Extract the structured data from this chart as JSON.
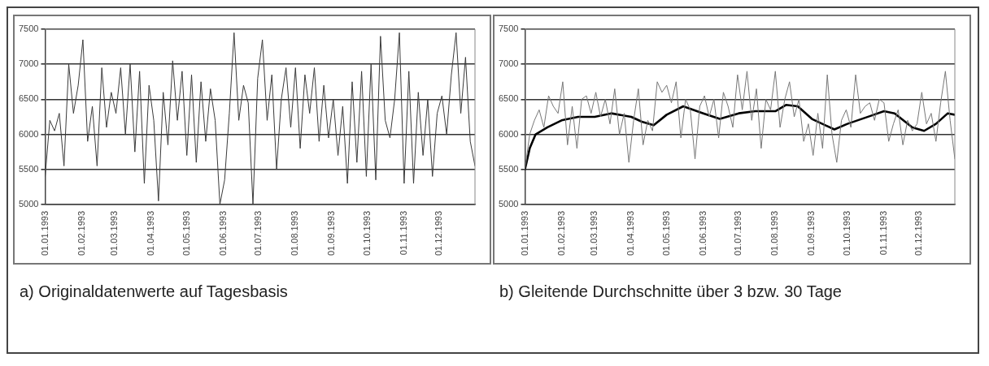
{
  "chart_data": [
    {
      "type": "line",
      "title": "a) Originaldatenwerte auf Tagesbasis",
      "grid": "y",
      "legend": false,
      "marker": "none",
      "x": [
        "1993-01-01",
        "1993-01-05",
        "1993-01-09",
        "1993-01-13",
        "1993-01-17",
        "1993-01-21",
        "1993-01-25",
        "1993-01-29",
        "1993-02-02",
        "1993-02-06",
        "1993-02-10",
        "1993-02-14",
        "1993-02-18",
        "1993-02-22",
        "1993-02-26",
        "1993-03-02",
        "1993-03-06",
        "1993-03-10",
        "1993-03-14",
        "1993-03-18",
        "1993-03-22",
        "1993-03-26",
        "1993-03-30",
        "1993-04-03",
        "1993-04-07",
        "1993-04-11",
        "1993-04-15",
        "1993-04-19",
        "1993-04-23",
        "1993-04-27",
        "1993-05-01",
        "1993-05-05",
        "1993-05-09",
        "1993-05-13",
        "1993-05-17",
        "1993-05-21",
        "1993-05-25",
        "1993-05-29",
        "1993-06-02",
        "1993-06-06",
        "1993-06-10",
        "1993-06-14",
        "1993-06-18",
        "1993-06-22",
        "1993-06-26",
        "1993-06-30",
        "1993-07-04",
        "1993-07-08",
        "1993-07-12",
        "1993-07-16",
        "1993-07-20",
        "1993-07-24",
        "1993-07-28",
        "1993-08-01",
        "1993-08-05",
        "1993-08-09",
        "1993-08-13",
        "1993-08-17",
        "1993-08-21",
        "1993-08-25",
        "1993-08-29",
        "1993-09-02",
        "1993-09-06",
        "1993-09-10",
        "1993-09-14",
        "1993-09-18",
        "1993-09-22",
        "1993-09-26",
        "1993-09-30",
        "1993-10-04",
        "1993-10-08",
        "1993-10-12",
        "1993-10-16",
        "1993-10-20",
        "1993-10-24",
        "1993-10-28",
        "1993-11-01",
        "1993-11-05",
        "1993-11-09",
        "1993-11-13",
        "1993-11-17",
        "1993-11-21",
        "1993-11-25",
        "1993-11-29",
        "1993-12-03",
        "1993-12-07",
        "1993-12-11",
        "1993-12-15",
        "1993-12-19",
        "1993-12-23",
        "1993-12-27",
        "1993-12-31"
      ],
      "series": [
        {
          "color": "#3a3a3a",
          "values": [
            5400,
            6200,
            6050,
            6300,
            5550,
            7000,
            6300,
            6700,
            7350,
            5900,
            6400,
            5550,
            6950,
            6100,
            6600,
            6300,
            6950,
            6000,
            7000,
            5750,
            6900,
            5300,
            6700,
            6200,
            5050,
            6600,
            5850,
            7050,
            6200,
            6900,
            5700,
            6850,
            5600,
            6750,
            5900,
            6650,
            6200,
            5000,
            5350,
            6300,
            7450,
            6200,
            6700,
            6450,
            5000,
            6800,
            7350,
            6200,
            6850,
            5500,
            6500,
            6950,
            6100,
            6950,
            5800,
            6850,
            6300,
            6950,
            5900,
            6700,
            5950,
            6500,
            5700,
            6400,
            5300,
            6750,
            5600,
            6900,
            5400,
            7000,
            5350,
            7400,
            6200,
            5950,
            6500,
            7450,
            5300,
            6900,
            5300,
            6600,
            5700,
            6500,
            5400,
            6300,
            6550,
            6000,
            6850,
            7450,
            6300,
            7100,
            5900,
            5550
          ]
        }
      ],
      "xlim": [
        "1993-01-01",
        "1993-12-31"
      ],
      "xticks": [
        {
          "value": "1993-01-01",
          "label": "01.01.1993"
        },
        {
          "value": "1993-02-01",
          "label": "01.02.1993"
        },
        {
          "value": "1993-03-01",
          "label": "01.03.1993"
        },
        {
          "value": "1993-04-01",
          "label": "01.04.1993"
        },
        {
          "value": "1993-05-01",
          "label": "01.05.1993"
        },
        {
          "value": "1993-06-01",
          "label": "01.06.1993"
        },
        {
          "value": "1993-07-01",
          "label": "01.07.1993"
        },
        {
          "value": "1993-08-01",
          "label": "01.08.1993"
        },
        {
          "value": "1993-09-01",
          "label": "01.09.1993"
        },
        {
          "value": "1993-10-01",
          "label": "01.10.1993"
        },
        {
          "value": "1993-11-01",
          "label": "01.11.1993"
        },
        {
          "value": "1993-12-01",
          "label": "01.12.1993"
        }
      ],
      "ylim": [
        5000,
        7500
      ],
      "yticks": [
        5000,
        5500,
        6000,
        6500,
        7000,
        7500
      ]
    },
    {
      "type": "line",
      "title": "b) Gleitende Durchschnitte über 3 bzw. 30 Tage",
      "grid": "y",
      "legend": false,
      "marker": "none",
      "x": [
        "1993-01-01",
        "1993-01-05",
        "1993-01-09",
        "1993-01-13",
        "1993-01-17",
        "1993-01-21",
        "1993-01-25",
        "1993-01-29",
        "1993-02-02",
        "1993-02-06",
        "1993-02-10",
        "1993-02-14",
        "1993-02-18",
        "1993-02-22",
        "1993-02-26",
        "1993-03-02",
        "1993-03-06",
        "1993-03-10",
        "1993-03-14",
        "1993-03-18",
        "1993-03-22",
        "1993-03-26",
        "1993-03-30",
        "1993-04-03",
        "1993-04-07",
        "1993-04-11",
        "1993-04-15",
        "1993-04-19",
        "1993-04-23",
        "1993-04-27",
        "1993-05-01",
        "1993-05-05",
        "1993-05-09",
        "1993-05-13",
        "1993-05-17",
        "1993-05-21",
        "1993-05-25",
        "1993-05-29",
        "1993-06-02",
        "1993-06-06",
        "1993-06-10",
        "1993-06-14",
        "1993-06-18",
        "1993-06-22",
        "1993-06-26",
        "1993-06-30",
        "1993-07-04",
        "1993-07-08",
        "1993-07-12",
        "1993-07-16",
        "1993-07-20",
        "1993-07-24",
        "1993-07-28",
        "1993-08-01",
        "1993-08-05",
        "1993-08-09",
        "1993-08-13",
        "1993-08-17",
        "1993-08-21",
        "1993-08-25",
        "1993-08-29",
        "1993-09-02",
        "1993-09-06",
        "1993-09-10",
        "1993-09-14",
        "1993-09-18",
        "1993-09-22",
        "1993-09-26",
        "1993-09-30",
        "1993-10-04",
        "1993-10-08",
        "1993-10-12",
        "1993-10-16",
        "1993-10-20",
        "1993-10-24",
        "1993-10-28",
        "1993-11-01",
        "1993-11-05",
        "1993-11-09",
        "1993-11-13",
        "1993-11-17",
        "1993-11-21",
        "1993-11-25",
        "1993-11-29",
        "1993-12-03",
        "1993-12-07",
        "1993-12-11",
        "1993-12-15",
        "1993-12-19",
        "1993-12-23",
        "1993-12-27",
        "1993-12-31"
      ],
      "series": [
        {
          "color": "#777777",
          "values": [
            5500,
            6000,
            6200,
            6350,
            6100,
            6550,
            6400,
            6300,
            6750,
            5850,
            6400,
            5800,
            6500,
            6550,
            6300,
            6600,
            6250,
            6500,
            6150,
            6650,
            6000,
            6300,
            5600,
            6200,
            6650,
            5850,
            6200,
            6050,
            6750,
            6600,
            6700,
            6450,
            6750,
            5950,
            6500,
            6350,
            5650,
            6400,
            6550,
            6250,
            6500,
            5950,
            6600,
            6400,
            6100,
            6850,
            6350,
            6900,
            6200,
            6650,
            5800,
            6500,
            6350,
            6900,
            6100,
            6500,
            6750,
            6250,
            6500,
            5900,
            6150,
            5700,
            6300,
            5800,
            6850,
            6000,
            5600,
            6200,
            6350,
            6100,
            6850,
            6300,
            6400,
            6450,
            6200,
            6500,
            6450,
            5900,
            6150,
            6350,
            5850,
            6200,
            6050,
            6150,
            6600,
            6150,
            6300,
            5900,
            6450,
            6900,
            6200,
            5650
          ]
        },
        {
          "color": "#000000",
          "x": [
            "1993-01-01",
            "1993-01-05",
            "1993-01-10",
            "1993-01-20",
            "1993-02-01",
            "1993-02-15",
            "1993-03-01",
            "1993-03-15",
            "1993-04-01",
            "1993-04-10",
            "1993-04-20",
            "1993-05-01",
            "1993-05-15",
            "1993-06-01",
            "1993-06-15",
            "1993-07-01",
            "1993-07-15",
            "1993-08-01",
            "1993-08-10",
            "1993-08-20",
            "1993-09-01",
            "1993-09-20",
            "1993-10-01",
            "1993-10-20",
            "1993-11-01",
            "1993-11-10",
            "1993-11-25",
            "1993-12-05",
            "1993-12-15",
            "1993-12-25",
            "1993-12-31"
          ],
          "values": [
            5500,
            5800,
            6000,
            6100,
            6200,
            6250,
            6250,
            6300,
            6250,
            6180,
            6130,
            6280,
            6400,
            6300,
            6220,
            6300,
            6330,
            6330,
            6420,
            6400,
            6220,
            6070,
            6150,
            6260,
            6330,
            6300,
            6100,
            6050,
            6150,
            6300,
            6280
          ]
        }
      ],
      "xlim": [
        "1993-01-01",
        "1993-12-31"
      ],
      "xticks": [
        {
          "value": "1993-01-01",
          "label": "01.01.1993"
        },
        {
          "value": "1993-02-01",
          "label": "01.02.1993"
        },
        {
          "value": "1993-03-01",
          "label": "01.03.1993"
        },
        {
          "value": "1993-04-01",
          "label": "01.04.1993"
        },
        {
          "value": "1993-05-01",
          "label": "01.05.1993"
        },
        {
          "value": "1993-06-01",
          "label": "01.06.1993"
        },
        {
          "value": "1993-07-01",
          "label": "01.07.1993"
        },
        {
          "value": "1993-08-01",
          "label": "01.08.1993"
        },
        {
          "value": "1993-09-01",
          "label": "01.09.1993"
        },
        {
          "value": "1993-10-01",
          "label": "01.10.1993"
        },
        {
          "value": "1993-11-01",
          "label": "01.11.1993"
        },
        {
          "value": "1993-12-01",
          "label": "01.12.1993"
        }
      ],
      "ylim": [
        5000,
        7500
      ],
      "yticks": [
        5000,
        5500,
        6000,
        6500,
        7000,
        7500
      ]
    }
  ]
}
